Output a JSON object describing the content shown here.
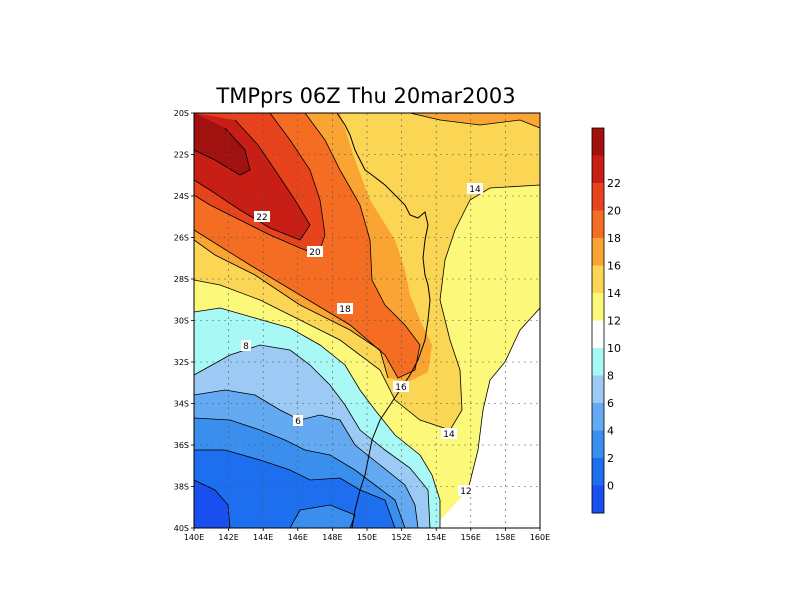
{
  "title": "TMPprs 06Z Thu 20mar2003",
  "x_ticks": [
    "140E",
    "142E",
    "144E",
    "146E",
    "148E",
    "150E",
    "152E",
    "154E",
    "156E",
    "158E",
    "160E"
  ],
  "y_ticks": [
    "20S",
    "22S",
    "24S",
    "26S",
    "28S",
    "30S",
    "32S",
    "34S",
    "36S",
    "38S",
    "40S"
  ],
  "contour_labels": [
    "22",
    "20",
    "18",
    "16",
    "14",
    "14",
    "12",
    "8",
    "6"
  ],
  "colorbar": {
    "tick_labels": [
      "0",
      "2",
      "4",
      "6",
      "8",
      "10",
      "12",
      "14",
      "16",
      "18",
      "20",
      "22"
    ],
    "colors": [
      "#1a4fef",
      "#1e6ff0",
      "#3a8fee",
      "#64aaf2",
      "#9dcaf5",
      "#a8f8f6",
      "#ffffff",
      "#fbf87a",
      "#fbd655",
      "#f9a433",
      "#f46d22",
      "#e7431d",
      "#c81e15",
      "#a0110f"
    ]
  },
  "chart_data": {
    "type": "heatmap",
    "title": "TMPprs 06Z Thu 20mar2003",
    "x_range": [
      "140E",
      "160E"
    ],
    "y_range": [
      "20S",
      "40S"
    ],
    "levels": [
      0,
      2,
      4,
      6,
      8,
      10,
      12,
      14,
      16,
      18,
      20,
      22
    ],
    "contour_labels": [
      22,
      20,
      18,
      16,
      14,
      14,
      12,
      8,
      6
    ],
    "grid": true
  }
}
